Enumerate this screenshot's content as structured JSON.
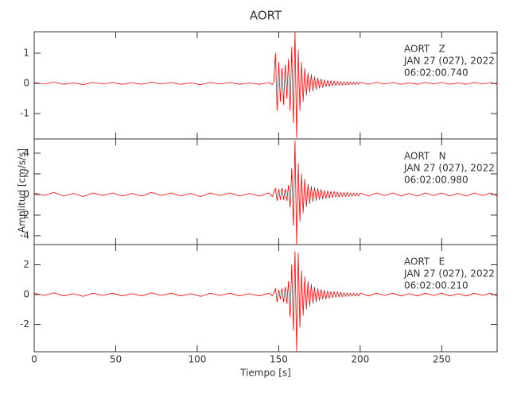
{
  "chart_data": {
    "type": "line",
    "title": "AORT",
    "xlabel": "Tiempo [s]",
    "ylabel": "Amplitud [cm/s/s]",
    "xlim": [
      0,
      284
    ],
    "xticks": [
      0,
      50,
      100,
      150,
      200,
      250
    ],
    "x": [
      0,
      6,
      12,
      18,
      24,
      30,
      36,
      42,
      48,
      54,
      60,
      66,
      72,
      78,
      84,
      90,
      96,
      102,
      108,
      114,
      120,
      126,
      132,
      138,
      144,
      146,
      147,
      148,
      149,
      150,
      151,
      152,
      153,
      154,
      155,
      156,
      157,
      158,
      159,
      160,
      161,
      162,
      163,
      164,
      165,
      166,
      167,
      168,
      169,
      170,
      171,
      172,
      173,
      174,
      175,
      176,
      177,
      178,
      179,
      180,
      181,
      182,
      183,
      184,
      185,
      186,
      187,
      188,
      189,
      190,
      191,
      192,
      193,
      194,
      195,
      196,
      197,
      198,
      199,
      200,
      205,
      210,
      215,
      220,
      225,
      230,
      235,
      240,
      245,
      250,
      255,
      260,
      265,
      270,
      275,
      280,
      284
    ],
    "series": [
      {
        "name": "AORT   Z",
        "annotation": [
          "JAN 27 (027), 2022",
          "06:02:00.740"
        ],
        "color": "#ff0000",
        "ylim": [
          -1.84,
          1.71
        ],
        "yticks": [
          -1,
          0,
          1
        ],
        "values": [
          0.03,
          -0.02,
          0.04,
          -0.03,
          0.02,
          -0.04,
          0.03,
          -0.02,
          0.03,
          -0.03,
          0.02,
          -0.03,
          0.04,
          -0.02,
          0.03,
          -0.03,
          0.02,
          -0.04,
          0.03,
          -0.02,
          0.03,
          -0.03,
          0.02,
          -0.03,
          0.03,
          -0.04,
          0.05,
          1.0,
          -0.9,
          0.7,
          -0.6,
          0.5,
          -0.7,
          0.6,
          -0.5,
          0.8,
          -0.9,
          1.2,
          -1.3,
          1.7,
          -1.8,
          1.1,
          -0.9,
          0.7,
          -0.6,
          0.5,
          -0.4,
          0.35,
          -0.3,
          0.3,
          -0.25,
          0.22,
          -0.2,
          0.18,
          -0.16,
          0.15,
          -0.14,
          0.12,
          -0.11,
          0.1,
          -0.1,
          0.09,
          -0.08,
          0.08,
          -0.07,
          0.07,
          -0.06,
          0.06,
          -0.06,
          0.05,
          -0.05,
          0.05,
          -0.05,
          0.04,
          -0.04,
          0.04,
          -0.04,
          0.04,
          -0.03,
          0.04,
          -0.03,
          0.03,
          -0.02,
          0.03,
          -0.03,
          0.02,
          -0.03,
          0.03,
          -0.02,
          0.03,
          -0.03,
          0.02,
          -0.03,
          0.03,
          -0.02,
          0.03,
          -0.03
        ]
      },
      {
        "name": "AORT   N",
        "annotation": [
          "JAN 27 (027), 2022",
          "06:02:00.980"
        ],
        "color": "#ff0000",
        "ylim": [
          -4.85,
          5.38
        ],
        "yticks": [
          -4,
          -2,
          0,
          2,
          4
        ],
        "values": [
          0.15,
          -0.1,
          0.2,
          -0.15,
          0.1,
          -0.2,
          0.15,
          -0.1,
          0.15,
          -0.15,
          0.1,
          -0.15,
          0.2,
          -0.1,
          0.15,
          -0.15,
          0.1,
          -0.2,
          0.15,
          -0.1,
          0.15,
          -0.15,
          0.1,
          -0.15,
          0.15,
          -0.2,
          0.2,
          0.6,
          -0.6,
          0.5,
          -0.5,
          0.6,
          -0.5,
          0.5,
          -0.6,
          0.9,
          -1.2,
          2.5,
          -3.0,
          5.2,
          -4.8,
          3.0,
          -2.6,
          2.0,
          -1.8,
          1.5,
          -1.2,
          1.0,
          -0.9,
          0.8,
          -0.7,
          0.7,
          -0.6,
          0.6,
          -0.5,
          0.5,
          -0.45,
          0.4,
          -0.4,
          0.35,
          -0.35,
          0.3,
          -0.3,
          0.3,
          -0.25,
          0.25,
          -0.25,
          0.2,
          -0.2,
          0.2,
          -0.2,
          0.2,
          -0.2,
          0.15,
          -0.15,
          0.15,
          -0.15,
          0.15,
          -0.15,
          0.15,
          -0.15,
          0.15,
          -0.1,
          0.15,
          -0.15,
          0.1,
          -0.15,
          0.15,
          -0.1,
          0.15,
          -0.15,
          0.1,
          -0.15,
          0.15,
          -0.1,
          0.15,
          -0.15
        ]
      },
      {
        "name": "AORT   E",
        "annotation": [
          "JAN 27 (027), 2022",
          "06:02:00.210"
        ],
        "color": "#ff0000",
        "ylim": [
          -3.84,
          3.36
        ],
        "yticks": [
          -2,
          0,
          2
        ],
        "values": [
          0.09,
          -0.06,
          0.12,
          -0.09,
          0.06,
          -0.12,
          0.09,
          -0.06,
          0.09,
          -0.09,
          0.06,
          -0.09,
          0.12,
          -0.06,
          0.09,
          -0.09,
          0.06,
          -0.12,
          0.09,
          -0.06,
          0.09,
          -0.09,
          0.06,
          -0.09,
          0.09,
          -0.1,
          0.12,
          0.4,
          -0.5,
          0.3,
          -0.3,
          0.4,
          -0.5,
          0.5,
          -0.6,
          0.9,
          -1.5,
          2.0,
          -2.4,
          2.9,
          -3.8,
          2.8,
          -2.2,
          1.6,
          -1.4,
          1.2,
          -1.0,
          0.9,
          -0.8,
          0.7,
          -0.6,
          0.5,
          -0.5,
          0.4,
          -0.4,
          0.35,
          -0.3,
          0.3,
          -0.3,
          0.25,
          -0.25,
          0.2,
          -0.2,
          0.2,
          -0.18,
          0.18,
          -0.15,
          0.15,
          -0.15,
          0.12,
          -0.12,
          0.12,
          -0.12,
          0.1,
          -0.1,
          0.1,
          -0.1,
          0.1,
          -0.1,
          0.1,
          -0.09,
          0.09,
          -0.06,
          0.09,
          -0.09,
          0.06,
          -0.09,
          0.09,
          -0.06,
          0.09,
          -0.09,
          0.06,
          -0.09,
          0.09,
          -0.06,
          0.09,
          -0.09
        ]
      }
    ]
  }
}
